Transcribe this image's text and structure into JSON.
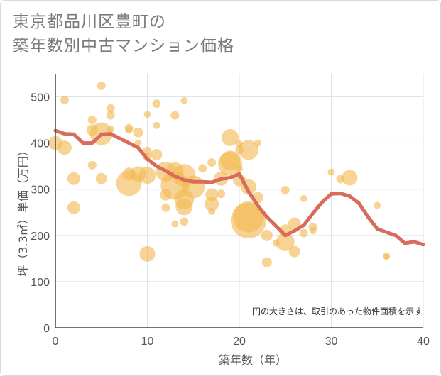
{
  "title_line1": "東京都品川区豊町の",
  "title_line2": "築年数別中古マンション価格",
  "chart_data": {
    "type": "scatter",
    "xlabel": "築年数（年）",
    "ylabel": "坪（3.3㎡）単価（万円）",
    "xlim": [
      0,
      40
    ],
    "ylim": [
      0,
      550
    ],
    "xticks": [
      "0",
      "10",
      "20",
      "30",
      "40"
    ],
    "yticks": [
      "0",
      "100",
      "200",
      "300",
      "400",
      "500"
    ],
    "note": "円の大きさは、取引のあった物件面積を示す",
    "colors": {
      "bubble": "#f2b84f",
      "trend": "#d86b5a",
      "grid": "#d8e4ee"
    },
    "bubbles": [
      {
        "x": 0,
        "y": 400,
        "r": 10
      },
      {
        "x": 1,
        "y": 390,
        "r": 10
      },
      {
        "x": 1,
        "y": 493,
        "r": 6
      },
      {
        "x": 2,
        "y": 323,
        "r": 9
      },
      {
        "x": 2,
        "y": 260,
        "r": 9
      },
      {
        "x": 4,
        "y": 428,
        "r": 8
      },
      {
        "x": 4,
        "y": 450,
        "r": 6
      },
      {
        "x": 4,
        "y": 352,
        "r": 6
      },
      {
        "x": 5,
        "y": 524,
        "r": 6
      },
      {
        "x": 5,
        "y": 420,
        "r": 16
      },
      {
        "x": 5,
        "y": 323,
        "r": 8
      },
      {
        "x": 6,
        "y": 475,
        "r": 6
      },
      {
        "x": 6,
        "y": 460,
        "r": 6
      },
      {
        "x": 6,
        "y": 430,
        "r": 5
      },
      {
        "x": 8,
        "y": 432,
        "r": 6
      },
      {
        "x": 8,
        "y": 428,
        "r": 5
      },
      {
        "x": 8,
        "y": 333,
        "r": 9
      },
      {
        "x": 8,
        "y": 313,
        "r": 18
      },
      {
        "x": 9,
        "y": 423,
        "r": 7
      },
      {
        "x": 9,
        "y": 400,
        "r": 5
      },
      {
        "x": 9,
        "y": 333,
        "r": 11
      },
      {
        "x": 10,
        "y": 462,
        "r": 5
      },
      {
        "x": 10,
        "y": 383,
        "r": 6
      },
      {
        "x": 10,
        "y": 370,
        "r": 6
      },
      {
        "x": 10,
        "y": 330,
        "r": 12
      },
      {
        "x": 10,
        "y": 160,
        "r": 11
      },
      {
        "x": 11,
        "y": 485,
        "r": 6
      },
      {
        "x": 11,
        "y": 438,
        "r": 5
      },
      {
        "x": 11,
        "y": 375,
        "r": 8
      },
      {
        "x": 12,
        "y": 338,
        "r": 14
      },
      {
        "x": 12,
        "y": 288,
        "r": 8
      },
      {
        "x": 12,
        "y": 260,
        "r": 6
      },
      {
        "x": 13,
        "y": 460,
        "r": 6
      },
      {
        "x": 13,
        "y": 340,
        "r": 12
      },
      {
        "x": 13,
        "y": 308,
        "r": 20
      },
      {
        "x": 13,
        "y": 225,
        "r": 5
      },
      {
        "x": 14,
        "y": 492,
        "r": 5
      },
      {
        "x": 14,
        "y": 330,
        "r": 16
      },
      {
        "x": 14,
        "y": 278,
        "r": 14
      },
      {
        "x": 14,
        "y": 262,
        "r": 12
      },
      {
        "x": 14,
        "y": 230,
        "r": 6
      },
      {
        "x": 15,
        "y": 305,
        "r": 16
      },
      {
        "x": 16,
        "y": 345,
        "r": 6
      },
      {
        "x": 17,
        "y": 358,
        "r": 6
      },
      {
        "x": 17,
        "y": 288,
        "r": 9
      },
      {
        "x": 17,
        "y": 268,
        "r": 10
      },
      {
        "x": 17,
        "y": 252,
        "r": 5
      },
      {
        "x": 18,
        "y": 323,
        "r": 10
      },
      {
        "x": 18,
        "y": 290,
        "r": 6
      },
      {
        "x": 19,
        "y": 412,
        "r": 12
      },
      {
        "x": 19,
        "y": 362,
        "r": 14
      },
      {
        "x": 19,
        "y": 355,
        "r": 17
      },
      {
        "x": 20,
        "y": 398,
        "r": 5
      },
      {
        "x": 20,
        "y": 385,
        "r": 6
      },
      {
        "x": 20,
        "y": 345,
        "r": 5
      },
      {
        "x": 20,
        "y": 320,
        "r": 9
      },
      {
        "x": 21,
        "y": 385,
        "r": 14
      },
      {
        "x": 21,
        "y": 305,
        "r": 11
      },
      {
        "x": 21,
        "y": 240,
        "r": 22
      },
      {
        "x": 21,
        "y": 232,
        "r": 25
      },
      {
        "x": 22,
        "y": 400,
        "r": 5
      },
      {
        "x": 22,
        "y": 282,
        "r": 8
      },
      {
        "x": 23,
        "y": 200,
        "r": 8
      },
      {
        "x": 23,
        "y": 142,
        "r": 7
      },
      {
        "x": 24,
        "y": 183,
        "r": 5
      },
      {
        "x": 25,
        "y": 298,
        "r": 6
      },
      {
        "x": 25,
        "y": 210,
        "r": 9
      },
      {
        "x": 25,
        "y": 186,
        "r": 13
      },
      {
        "x": 26,
        "y": 225,
        "r": 9
      },
      {
        "x": 26,
        "y": 165,
        "r": 8
      },
      {
        "x": 27,
        "y": 280,
        "r": 5
      },
      {
        "x": 27,
        "y": 205,
        "r": 6
      },
      {
        "x": 28,
        "y": 218,
        "r": 6
      },
      {
        "x": 28,
        "y": 210,
        "r": 5
      },
      {
        "x": 30,
        "y": 337,
        "r": 5
      },
      {
        "x": 31,
        "y": 322,
        "r": 6
      },
      {
        "x": 32,
        "y": 325,
        "r": 11
      },
      {
        "x": 35,
        "y": 265,
        "r": 5
      },
      {
        "x": 36,
        "y": 155,
        "r": 5
      },
      {
        "x": 36,
        "y": 154,
        "r": 4
      }
    ],
    "trend": [
      [
        0,
        427
      ],
      [
        1,
        420
      ],
      [
        2,
        419
      ],
      [
        3,
        400
      ],
      [
        4,
        400
      ],
      [
        5,
        419
      ],
      [
        6,
        420
      ],
      [
        7,
        410
      ],
      [
        8,
        400
      ],
      [
        9,
        390
      ],
      [
        10,
        365
      ],
      [
        11,
        350
      ],
      [
        12,
        340
      ],
      [
        13,
        328
      ],
      [
        14,
        320
      ],
      [
        15,
        316
      ],
      [
        16,
        316
      ],
      [
        17,
        315
      ],
      [
        18,
        322
      ],
      [
        19,
        325
      ],
      [
        20,
        333
      ],
      [
        21,
        295
      ],
      [
        22,
        265
      ],
      [
        23,
        240
      ],
      [
        24,
        220
      ],
      [
        25,
        200
      ],
      [
        26,
        210
      ],
      [
        27,
        222
      ],
      [
        28,
        248
      ],
      [
        29,
        272
      ],
      [
        30,
        290
      ],
      [
        31,
        291
      ],
      [
        32,
        285
      ],
      [
        33,
        270
      ],
      [
        34,
        240
      ],
      [
        35,
        214
      ],
      [
        36,
        207
      ],
      [
        37,
        200
      ],
      [
        38,
        183
      ],
      [
        39,
        186
      ],
      [
        40,
        180
      ]
    ]
  }
}
